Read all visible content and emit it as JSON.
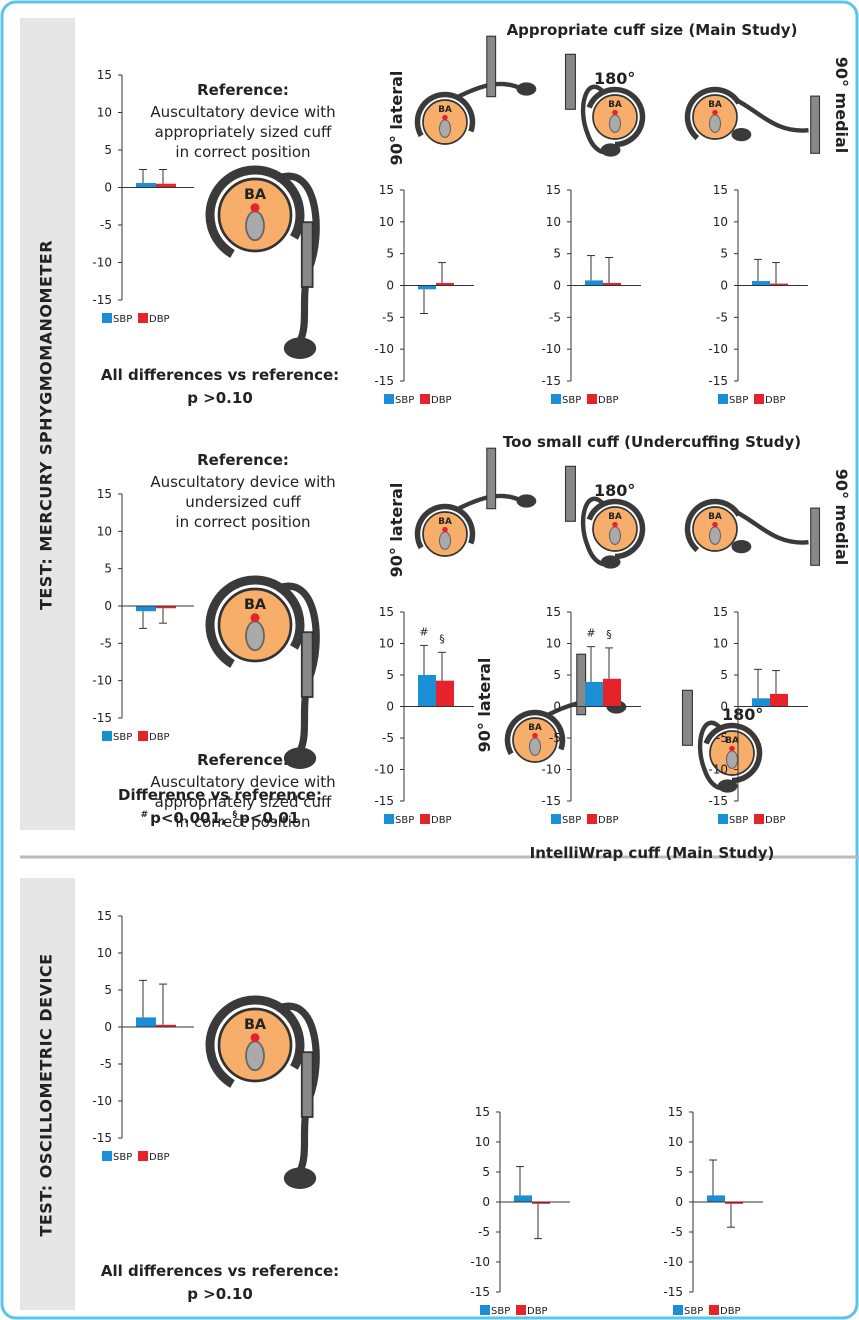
{
  "section_labels": [
    "TEST: MERCURY SPHYGMOMANOMETER",
    "TEST: OSCILLOMETRIC DEVICE"
  ],
  "group_titles": [
    "Appropriate cuff size (Main Study)",
    "Too small cuff (Undercuffing Study)",
    "IntelliWrap cuff (Main Study)"
  ],
  "references": [
    {
      "heading": "Reference:",
      "lines": [
        "Auscultatory device with",
        "appropriately sized cuff",
        "in correct position"
      ]
    },
    {
      "heading": "Reference:",
      "lines": [
        "Auscultatory device with",
        "undersized cuff",
        "in correct position"
      ]
    },
    {
      "heading": "Reference:",
      "lines": [
        "Auscultatory device with",
        "appropriately sized cuff",
        "in correct position"
      ]
    }
  ],
  "captions": [
    {
      "heading": "All differences vs reference:",
      "lines": [
        "p >0.10"
      ]
    },
    {
      "heading": "Difference vs reference:",
      "parts": [
        {
          "sup": "#",
          "text": "p<0.001,"
        },
        {
          "sup": "§",
          "text": "p<0.01"
        }
      ]
    },
    {
      "heading": "All differences vs reference:",
      "lines": [
        "p >0.10"
      ]
    }
  ],
  "positions": [
    "90° lateral",
    "180°",
    "90° medial"
  ],
  "anatomy_label": "BA",
  "chart_data": [
    {
      "type": "bar",
      "categories": [
        null
      ],
      "ylim": [
        -15,
        15
      ],
      "yticks": [
        -15,
        -10,
        -5,
        0,
        5,
        10,
        15
      ],
      "series": [
        {
          "name": "SBP",
          "color": "#1b8fd5",
          "values": [
            0.6
          ],
          "errors": [
            1.8
          ]
        },
        {
          "name": "DBP",
          "color": "#e5232b",
          "values": [
            0.5
          ],
          "errors": [
            1.9
          ]
        }
      ]
    },
    {
      "type": "bar",
      "categories": [
        null
      ],
      "ylim": [
        -15,
        15
      ],
      "yticks": [
        -15,
        -10,
        -5,
        0,
        5,
        10,
        15
      ],
      "series": [
        {
          "name": "SBP",
          "color": "#1b8fd5",
          "values": [
            -0.6
          ],
          "errors": [
            3.8
          ]
        },
        {
          "name": "DBP",
          "color": "#e5232b",
          "values": [
            0.4
          ],
          "errors": [
            3.2
          ]
        }
      ]
    },
    {
      "type": "bar",
      "categories": [
        null
      ],
      "ylim": [
        -15,
        15
      ],
      "yticks": [
        -15,
        -10,
        -5,
        0,
        5,
        10,
        15
      ],
      "series": [
        {
          "name": "SBP",
          "color": "#1b8fd5",
          "values": [
            0.8
          ],
          "errors": [
            3.9
          ]
        },
        {
          "name": "DBP",
          "color": "#e5232b",
          "values": [
            0.4
          ],
          "errors": [
            4.0
          ]
        }
      ]
    },
    {
      "type": "bar",
      "categories": [
        null
      ],
      "ylim": [
        -15,
        15
      ],
      "yticks": [
        -15,
        -10,
        -5,
        0,
        5,
        10,
        15
      ],
      "series": [
        {
          "name": "SBP",
          "color": "#1b8fd5",
          "values": [
            0.7
          ],
          "errors": [
            3.4
          ]
        },
        {
          "name": "DBP",
          "color": "#e5232b",
          "values": [
            0.3
          ],
          "errors": [
            3.3
          ]
        }
      ]
    },
    {
      "type": "bar",
      "categories": [
        null
      ],
      "ylim": [
        -15,
        15
      ],
      "yticks": [
        -15,
        -10,
        -5,
        0,
        5,
        10,
        15
      ],
      "series": [
        {
          "name": "SBP",
          "color": "#1b8fd5",
          "values": [
            -0.7
          ],
          "errors": [
            2.3
          ]
        },
        {
          "name": "DBP",
          "color": "#e5232b",
          "values": [
            -0.3
          ],
          "errors": [
            2.0
          ]
        }
      ]
    },
    {
      "type": "bar",
      "categories": [
        null
      ],
      "ylim": [
        -15,
        15
      ],
      "yticks": [
        -15,
        -10,
        -5,
        0,
        5,
        10,
        15
      ],
      "series": [
        {
          "name": "SBP",
          "color": "#1b8fd5",
          "values": [
            5.0
          ],
          "errors": [
            4.7
          ],
          "marker": "#"
        },
        {
          "name": "DBP",
          "color": "#e5232b",
          "values": [
            4.1
          ],
          "errors": [
            4.5
          ],
          "marker": "§"
        }
      ]
    },
    {
      "type": "bar",
      "categories": [
        null
      ],
      "ylim": [
        -15,
        15
      ],
      "yticks": [
        -15,
        -10,
        -5,
        0,
        5,
        10,
        15
      ],
      "series": [
        {
          "name": "SBP",
          "color": "#1b8fd5",
          "values": [
            3.9
          ],
          "errors": [
            5.6
          ],
          "marker": "#"
        },
        {
          "name": "DBP",
          "color": "#e5232b",
          "values": [
            4.4
          ],
          "errors": [
            4.9
          ],
          "marker": "§"
        }
      ]
    },
    {
      "type": "bar",
      "categories": [
        null
      ],
      "ylim": [
        -15,
        15
      ],
      "yticks": [
        -15,
        -10,
        -5,
        0,
        5,
        10,
        15
      ],
      "series": [
        {
          "name": "SBP",
          "color": "#1b8fd5",
          "values": [
            1.3
          ],
          "errors": [
            4.6
          ]
        },
        {
          "name": "DBP",
          "color": "#e5232b",
          "values": [
            2.0
          ],
          "errors": [
            3.7
          ]
        }
      ]
    },
    {
      "type": "bar",
      "categories": [
        null
      ],
      "ylim": [
        -15,
        15
      ],
      "yticks": [
        -15,
        -10,
        -5,
        0,
        5,
        10,
        15
      ],
      "series": [
        {
          "name": "SBP",
          "color": "#1b8fd5",
          "values": [
            1.3
          ],
          "errors": [
            5.0
          ]
        },
        {
          "name": "DBP",
          "color": "#e5232b",
          "values": [
            0.3
          ],
          "errors": [
            5.5
          ]
        }
      ]
    },
    {
      "type": "bar",
      "categories": [
        null
      ],
      "ylim": [
        -15,
        15
      ],
      "yticks": [
        -15,
        -10,
        -5,
        0,
        5,
        10,
        15
      ],
      "series": [
        {
          "name": "SBP",
          "color": "#1b8fd5",
          "values": [
            1.1
          ],
          "errors": [
            4.8
          ]
        },
        {
          "name": "DBP",
          "color": "#e5232b",
          "values": [
            -0.3
          ],
          "errors": [
            5.8
          ]
        }
      ]
    },
    {
      "type": "bar",
      "categories": [
        null
      ],
      "ylim": [
        -15,
        15
      ],
      "yticks": [
        -15,
        -10,
        -5,
        0,
        5,
        10,
        15
      ],
      "series": [
        {
          "name": "SBP",
          "color": "#1b8fd5",
          "values": [
            1.1
          ],
          "errors": [
            5.9
          ]
        },
        {
          "name": "DBP",
          "color": "#e5232b",
          "values": [
            -0.3
          ],
          "errors": [
            3.9
          ]
        }
      ]
    }
  ]
}
